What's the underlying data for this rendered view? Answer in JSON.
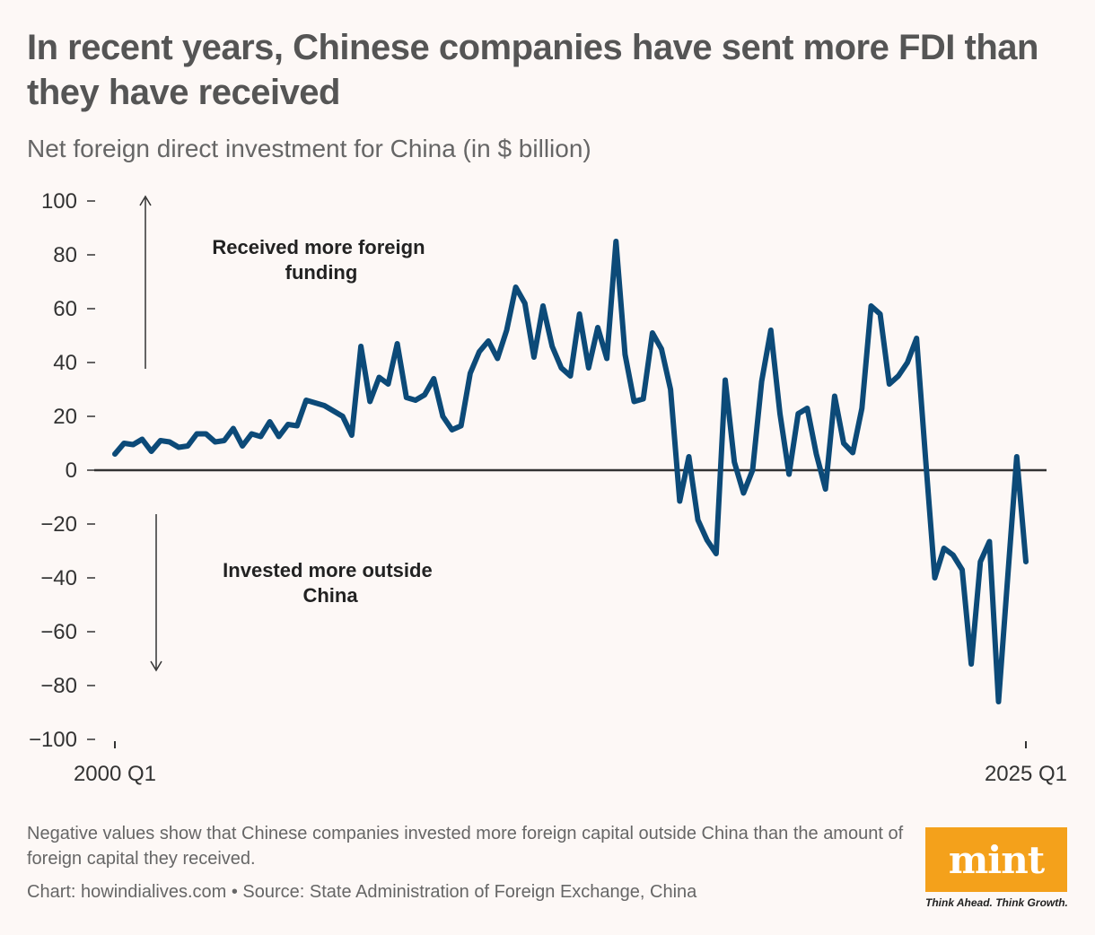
{
  "title": "In recent years, Chinese companies have sent more FDI than they have received",
  "subtitle": "Net foreign direct investment for China (in $ billion)",
  "footnote": "Negative values show that Chinese companies invested more foreign capital outside China than the amount of foreign capital they received.",
  "source": "Chart: howindialives.com • Source: State Administration of Foreign Exchange, China",
  "logo": {
    "text": "mint",
    "tagline": "Think Ahead. Think Growth.",
    "color": "#f4a11b"
  },
  "colors": {
    "line": "#0c4a78",
    "zero_line": "#333333",
    "text": "#333333"
  },
  "chart_data": {
    "type": "line",
    "title": "In recent years, Chinese companies have sent more FDI than they have received",
    "ylabel": "",
    "xlabel": "",
    "ylim": [
      -100,
      100
    ],
    "yticks": [
      100,
      80,
      60,
      40,
      20,
      0,
      -20,
      -40,
      -60,
      -80,
      -100
    ],
    "ytick_labels": [
      "100",
      "80",
      "60",
      "40",
      "20",
      "0",
      "−20",
      "−40",
      "−60",
      "−80",
      "−100"
    ],
    "x_start_label": "2000 Q1",
    "x_end_label": "2025 Q1",
    "grid": false,
    "annotations": {
      "up": "Received more foreign funding",
      "down": "Invested more outside China"
    },
    "series": [
      {
        "values": [
          6,
          10,
          9.5,
          11.5,
          7,
          11,
          10.5,
          8.5,
          9,
          13.5,
          13.5,
          10.5,
          11,
          15.5,
          9,
          13.5,
          12.5,
          18,
          12.5,
          17,
          16.5,
          26,
          25,
          24,
          22,
          20,
          13,
          46,
          25.5,
          34.5,
          32,
          47,
          27,
          26,
          28,
          34,
          20,
          15,
          16.5,
          36,
          44,
          48,
          41.5,
          52,
          68,
          62,
          42,
          61,
          46,
          38,
          35,
          58,
          38,
          53,
          41.5,
          85,
          43,
          25.5,
          26.5,
          51,
          45,
          30,
          -11.5,
          5,
          -18.5,
          -26,
          -31,
          33.5,
          3,
          -8.5,
          0,
          33,
          52,
          21,
          -1.5,
          21,
          23,
          6,
          -7,
          27.5,
          10,
          6.5,
          23,
          61,
          58,
          32,
          35,
          40,
          49,
          4,
          -40,
          -29,
          -31.5,
          -37,
          -72,
          -34,
          -26.5,
          -86,
          -40,
          5,
          -34
        ]
      }
    ]
  }
}
